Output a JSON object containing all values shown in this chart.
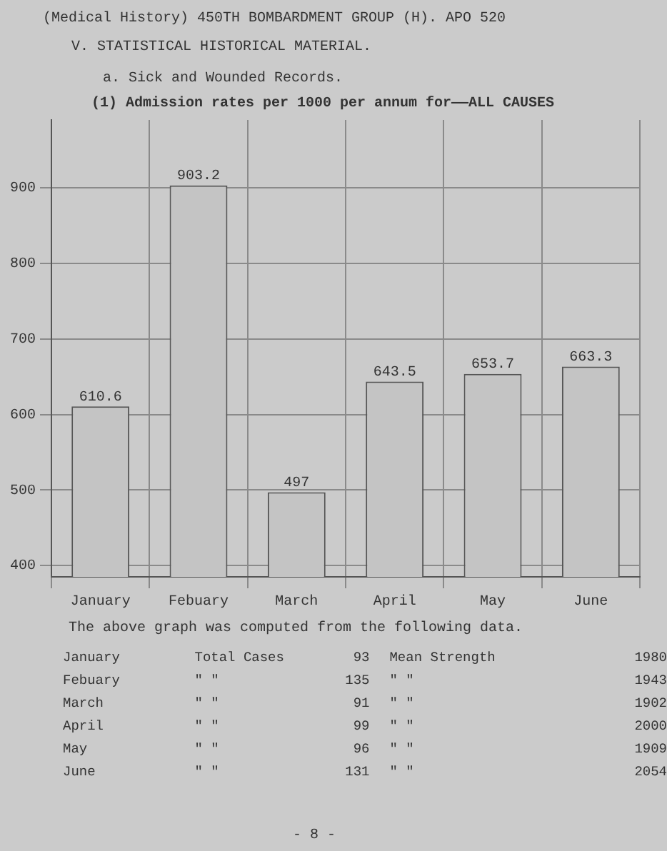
{
  "chart_data": {
    "type": "bar",
    "title": "(1) Admission rates per 1000 per annum for——ALL CAUSES",
    "categories": [
      "January",
      "Febuary",
      "March",
      "April",
      "May",
      "June"
    ],
    "values": [
      610.6,
      903.2,
      497,
      643.5,
      653.7,
      663.3
    ],
    "color": "#c4c4c4",
    "ylim": [
      385,
      990
    ],
    "yticks": [
      400,
      500,
      600,
      700,
      800,
      900
    ],
    "grid": true,
    "data_labels": true,
    "legend": false,
    "annotations": [
      "(Medical History) 450TH BOMBARDMENT GROUP (H). APO 520",
      "V. STATISTICAL HISTORICAL MATERIAL.",
      "a. Sick and Wounded Records.",
      "The above graph was computed from the following data.",
      "January\tTotal Cases\t93\tMean Strength\t1980",
      "Febuary\t\"   \"\t135\t\"   \"\t1943",
      "March\t\"   \"\t91\t\"   \"\t1902",
      "April\t\"   \"\t99\t\"   \"\t2000",
      "May\t\"   \"\t96\t\"   \"\t1909",
      "June\t\"   \"\t131\t\"   \"\t2054",
      "- 8 -"
    ]
  }
}
